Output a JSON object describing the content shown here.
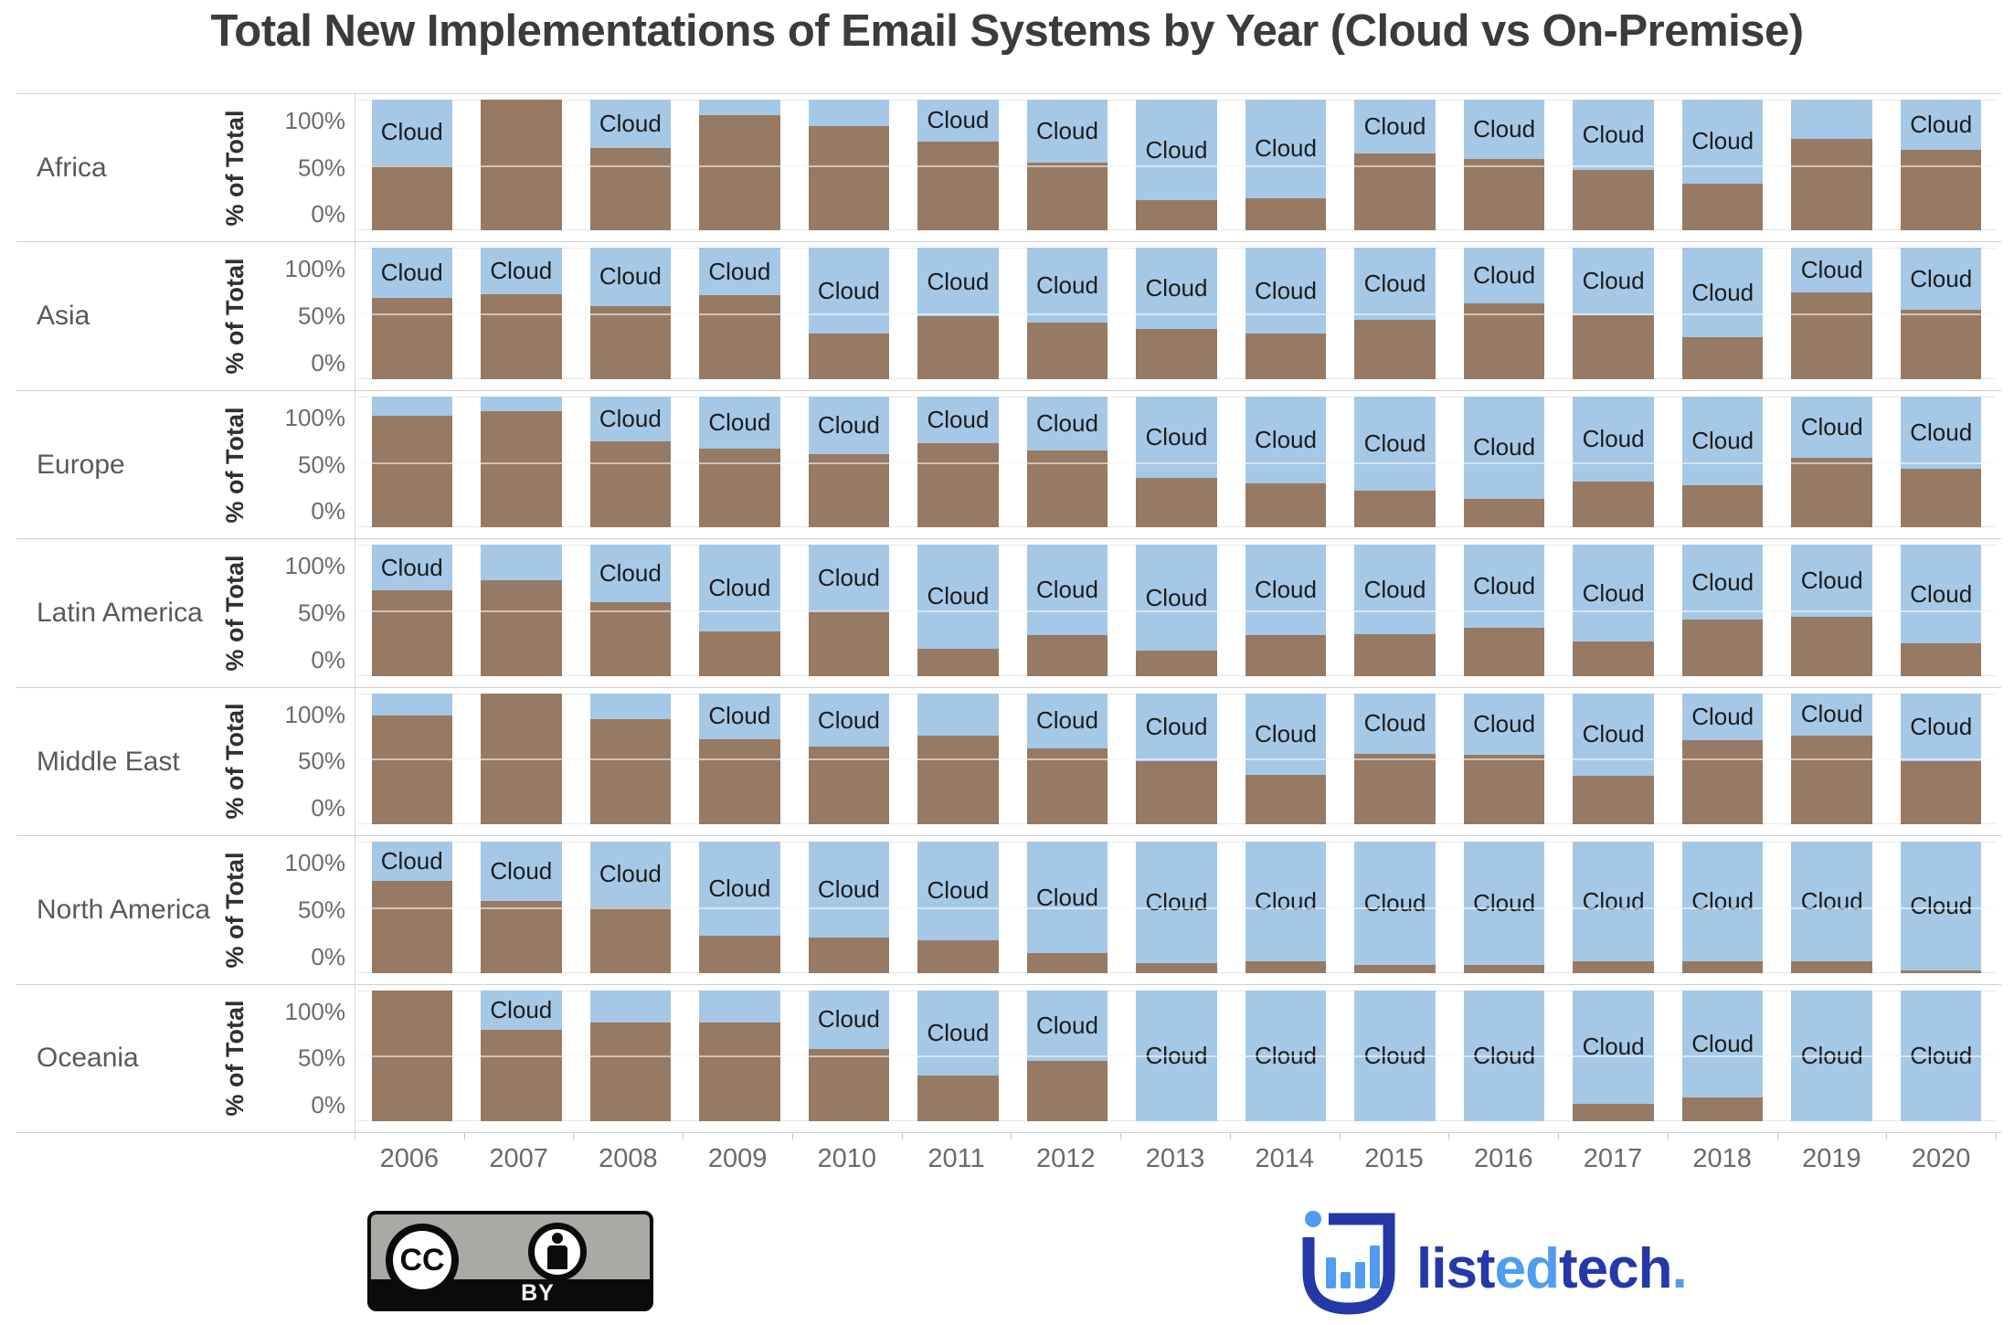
{
  "title": "Total New Implementations of Email Systems by Year (Cloud vs On-Premise)",
  "y_axis": {
    "label": "% of Total",
    "ticks": [
      "100%",
      "50%",
      "0%"
    ]
  },
  "cloud_segment_label": "Cloud",
  "colors": {
    "cloud": "#a5c8e6",
    "onpremise": "#977a63",
    "title_text": "#3b3b3b",
    "logo_navy": "#2438a8",
    "logo_lightblue": "#4f9cf0"
  },
  "chart_data": {
    "type": "bar",
    "subtype": "100pct-stacked-small-multiples",
    "title": "Total New Implementations of Email Systems by Year (Cloud vs On-Premise)",
    "xlabel": "",
    "ylabel": "% of Total",
    "ylim": [
      0,
      100
    ],
    "grid": "50pct line per row",
    "legend_position": "in-bar labels (Cloud)",
    "categories": [
      "2006",
      "2007",
      "2008",
      "2009",
      "2010",
      "2011",
      "2012",
      "2013",
      "2014",
      "2015",
      "2016",
      "2017",
      "2018",
      "2019",
      "2020"
    ],
    "rows": [
      {
        "region": "Africa",
        "cloud_pct": [
          50,
          0,
          37,
          12,
          20,
          32,
          48,
          77,
          75,
          41,
          45,
          54,
          64,
          30,
          38
        ],
        "onprem_pct": [
          50,
          100,
          63,
          88,
          80,
          68,
          52,
          23,
          25,
          59,
          55,
          46,
          36,
          70,
          62
        ],
        "cloud_label_visible": [
          1,
          0,
          1,
          0,
          0,
          1,
          1,
          1,
          1,
          1,
          1,
          1,
          1,
          0,
          1
        ]
      },
      {
        "region": "Asia",
        "cloud_pct": [
          38,
          35,
          44,
          36,
          65,
          52,
          57,
          62,
          65,
          55,
          42,
          51,
          68,
          34,
          47
        ],
        "onprem_pct": [
          62,
          65,
          56,
          64,
          35,
          48,
          43,
          38,
          35,
          45,
          58,
          49,
          32,
          66,
          53
        ],
        "cloud_label_visible": [
          1,
          1,
          1,
          1,
          1,
          1,
          1,
          1,
          1,
          1,
          1,
          1,
          1,
          1,
          1
        ]
      },
      {
        "region": "Europe",
        "cloud_pct": [
          15,
          11,
          34,
          40,
          44,
          36,
          41,
          62,
          66,
          72,
          78,
          65,
          68,
          47,
          55
        ],
        "onprem_pct": [
          85,
          89,
          66,
          60,
          56,
          64,
          59,
          38,
          34,
          28,
          22,
          35,
          32,
          53,
          45
        ],
        "cloud_label_visible": [
          0,
          0,
          1,
          1,
          1,
          1,
          1,
          1,
          1,
          1,
          1,
          1,
          1,
          1,
          1
        ]
      },
      {
        "region": "Latin America",
        "cloud_pct": [
          35,
          27,
          44,
          66,
          51,
          79,
          69,
          81,
          69,
          68,
          63,
          74,
          57,
          55,
          75
        ],
        "onprem_pct": [
          65,
          73,
          56,
          34,
          49,
          21,
          31,
          19,
          31,
          32,
          37,
          26,
          43,
          45,
          25
        ],
        "cloud_label_visible": [
          1,
          0,
          1,
          1,
          1,
          1,
          1,
          1,
          1,
          1,
          1,
          1,
          1,
          1,
          1
        ]
      },
      {
        "region": "Middle East",
        "cloud_pct": [
          17,
          0,
          20,
          35,
          41,
          32,
          42,
          52,
          62,
          46,
          47,
          63,
          36,
          32,
          52
        ],
        "onprem_pct": [
          83,
          100,
          80,
          65,
          59,
          68,
          58,
          48,
          38,
          54,
          53,
          37,
          64,
          68,
          48
        ],
        "cloud_label_visible": [
          0,
          0,
          0,
          1,
          1,
          0,
          1,
          1,
          1,
          1,
          1,
          1,
          1,
          1,
          1
        ]
      },
      {
        "region": "North America",
        "cloud_pct": [
          30,
          45,
          50,
          72,
          73,
          75,
          85,
          93,
          91,
          94,
          94,
          91,
          91,
          91,
          98
        ],
        "onprem_pct": [
          70,
          55,
          50,
          28,
          27,
          25,
          15,
          7,
          9,
          6,
          6,
          9,
          9,
          9,
          2
        ],
        "cloud_label_visible": [
          1,
          1,
          1,
          1,
          1,
          1,
          1,
          1,
          1,
          1,
          1,
          1,
          1,
          1,
          1
        ]
      },
      {
        "region": "Oceania",
        "cloud_pct": [
          0,
          30,
          25,
          25,
          45,
          65,
          54,
          100,
          100,
          100,
          100,
          87,
          82,
          100,
          100
        ],
        "onprem_pct": [
          100,
          70,
          75,
          75,
          55,
          35,
          46,
          0,
          0,
          0,
          0,
          13,
          18,
          0,
          0
        ],
        "cloud_label_visible": [
          0,
          1,
          0,
          0,
          1,
          1,
          1,
          1,
          1,
          1,
          1,
          1,
          1,
          1,
          1
        ]
      }
    ]
  },
  "footer": {
    "cc_badge": {
      "cc_text": "CC",
      "by_text": "BY"
    },
    "logo": {
      "parts": [
        {
          "text": "list",
          "color": "navy"
        },
        {
          "text": "ed",
          "color": "lightblue"
        },
        {
          "text": "tech",
          "color": "navy"
        },
        {
          "text": ".",
          "color": "lightblue"
        }
      ]
    }
  }
}
